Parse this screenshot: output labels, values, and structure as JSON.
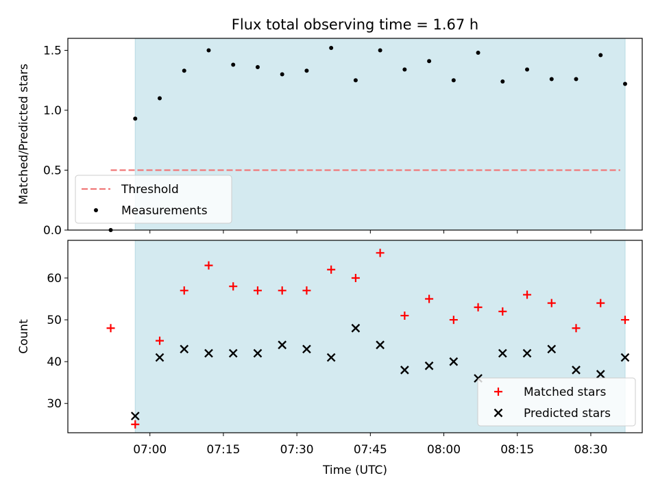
{
  "title": "Flux total observing time = 1.67 h",
  "chart_data": [
    {
      "type": "scatter",
      "ylabel": "Matched/Predicted stars",
      "xlabel": "",
      "ylim": [
        0,
        1.6
      ],
      "yticks": [
        0.0,
        0.5,
        1.0,
        1.5
      ],
      "ytick_labels": [
        "0.0",
        "0.5",
        "1.0",
        "1.5"
      ],
      "x_range": [
        "06:43",
        "08:41"
      ],
      "shaded_span": {
        "start": "06:57",
        "end": "08:37",
        "color": "#d4eaf0"
      },
      "threshold": {
        "name": "Threshold",
        "value": 0.5,
        "x_start": "06:52",
        "x_end": "08:36",
        "color": "#f07878"
      },
      "series": [
        {
          "name": "Measurements",
          "marker": "dot",
          "color": "#000000",
          "x": [
            "06:52",
            "06:57",
            "07:02",
            "07:07",
            "07:12",
            "07:17",
            "07:22",
            "07:27",
            "07:32",
            "07:37",
            "07:42",
            "07:47",
            "07:52",
            "07:57",
            "08:02",
            "08:07",
            "08:12",
            "08:17",
            "08:22",
            "08:27",
            "08:32",
            "08:37"
          ],
          "y": [
            0.0,
            0.93,
            1.1,
            1.33,
            1.5,
            1.38,
            1.36,
            1.3,
            1.33,
            1.52,
            1.25,
            1.5,
            1.34,
            1.41,
            1.25,
            1.48,
            1.24,
            1.34,
            1.26,
            1.26,
            1.46,
            1.22
          ]
        }
      ],
      "legend": {
        "placement": "lower-left",
        "entries": [
          "Threshold",
          "Measurements"
        ]
      }
    },
    {
      "type": "scatter",
      "xlabel": "Time (UTC)",
      "ylabel": "Count",
      "ylim": [
        23,
        69
      ],
      "yticks": [
        30,
        40,
        50,
        60
      ],
      "ytick_labels": [
        "30",
        "40",
        "50",
        "60"
      ],
      "xticks": [
        "07:00",
        "07:15",
        "07:30",
        "07:45",
        "08:00",
        "08:15",
        "08:30"
      ],
      "xtick_labels": [
        "07:00",
        "07:15",
        "07:30",
        "07:45",
        "08:00",
        "08:15",
        "08:30"
      ],
      "x_range": [
        "06:43",
        "08:41"
      ],
      "shaded_span": {
        "start": "06:57",
        "end": "08:37",
        "color": "#d4eaf0"
      },
      "series": [
        {
          "name": "Matched stars",
          "marker": "plus",
          "color": "#ff0000",
          "x": [
            "06:52",
            "06:57",
            "07:02",
            "07:07",
            "07:12",
            "07:17",
            "07:22",
            "07:27",
            "07:32",
            "07:37",
            "07:42",
            "07:47",
            "07:52",
            "07:57",
            "08:02",
            "08:07",
            "08:12",
            "08:17",
            "08:22",
            "08:27",
            "08:32",
            "08:37"
          ],
          "y": [
            48,
            25,
            45,
            57,
            63,
            58,
            57,
            57,
            57,
            62,
            60,
            66,
            51,
            55,
            50,
            53,
            52,
            56,
            54,
            48,
            54,
            50
          ]
        },
        {
          "name": "Predicted stars",
          "marker": "cross",
          "color": "#000000",
          "x": [
            "06:57",
            "07:02",
            "07:07",
            "07:12",
            "07:17",
            "07:22",
            "07:27",
            "07:32",
            "07:37",
            "07:42",
            "07:47",
            "07:52",
            "07:57",
            "08:02",
            "08:07",
            "08:12",
            "08:17",
            "08:22",
            "08:27",
            "08:32",
            "08:37"
          ],
          "y": [
            27,
            41,
            43,
            42,
            42,
            42,
            44,
            43,
            41,
            48,
            44,
            38,
            39,
            40,
            36,
            42,
            42,
            43,
            38,
            37,
            41
          ]
        }
      ],
      "legend": {
        "placement": "lower-right",
        "entries": [
          "Matched stars",
          "Predicted stars"
        ]
      }
    }
  ]
}
